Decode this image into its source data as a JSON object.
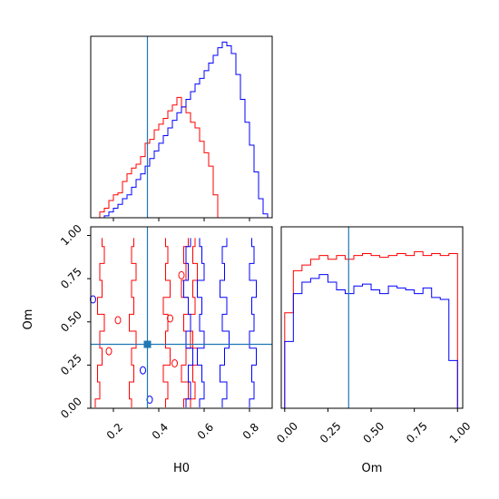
{
  "chart_data": {
    "type": "corner",
    "parameters": [
      "H0",
      "Om"
    ],
    "truth": {
      "H0": 0.35,
      "Om": 0.37
    },
    "colors": {
      "red": "#ff0000",
      "blue": "#0000ff",
      "truth": "#1f77b4"
    },
    "grid": false,
    "panels": [
      {
        "kind": "histogram",
        "param": "H0",
        "xlim": [
          0.1,
          0.9
        ],
        "edges": [
          0.14,
          0.16,
          0.18,
          0.2,
          0.22,
          0.24,
          0.26,
          0.28,
          0.3,
          0.32,
          0.34,
          0.36,
          0.38,
          0.4,
          0.42,
          0.44,
          0.46,
          0.48,
          0.5,
          0.52,
          0.54,
          0.56,
          0.58,
          0.6,
          0.62,
          0.64,
          0.66,
          0.68,
          0.7,
          0.72,
          0.74,
          0.76,
          0.78,
          0.8,
          0.82,
          0.84,
          0.86,
          0.88
        ],
        "series": [
          {
            "color": "red",
            "counts": [
              0.03,
              0.05,
              0.09,
              0.12,
              0.13,
              0.19,
              0.23,
              0.26,
              0.28,
              0.32,
              0.39,
              0.41,
              0.46,
              0.49,
              0.52,
              0.56,
              0.59,
              0.63,
              0.58,
              0.55,
              0.5,
              0.47,
              0.4,
              0.34,
              0.27,
              0.12,
              0.0,
              0.0,
              0.0,
              0.0,
              0.0,
              0.0,
              0.0,
              0.0,
              0.0,
              0.0,
              0.0
            ]
          },
          {
            "color": "blue",
            "counts": [
              0.0,
              0.01,
              0.03,
              0.05,
              0.07,
              0.1,
              0.12,
              0.16,
              0.2,
              0.23,
              0.27,
              0.31,
              0.35,
              0.39,
              0.43,
              0.47,
              0.51,
              0.55,
              0.58,
              0.62,
              0.66,
              0.7,
              0.73,
              0.77,
              0.81,
              0.85,
              0.89,
              0.92,
              0.9,
              0.86,
              0.75,
              0.62,
              0.5,
              0.38,
              0.24,
              0.1,
              0.02
            ]
          }
        ]
      },
      {
        "kind": "contour",
        "xparam": "H0",
        "yparam": "Om",
        "xlim": [
          0.1,
          0.9
        ],
        "ylim": [
          0.0,
          1.05
        ],
        "xticks": [
          "0.2",
          "0.4",
          "0.6",
          "0.8"
        ],
        "yticks": [
          "0.00",
          "0.25",
          "0.50",
          "0.75",
          "1.00"
        ],
        "xticks_values": [
          0.2,
          0.4,
          0.6,
          0.8
        ],
        "yticks_values": [
          0.0,
          0.25,
          0.5,
          0.75,
          1.0
        ],
        "xlabel": "H0",
        "ylabel": "Om",
        "contours": [
          {
            "color": "red",
            "levels": [
              {
                "x_at_y": [
                  0.12,
                  0.14,
                  0.13,
                  0.15,
                  0.14,
                  0.16,
                  0.13,
                  0.15,
                  0.14,
                  0.16,
                  0.15
                ]
              },
              {
                "x_at_y": [
                  0.28,
                  0.27,
                  0.29,
                  0.28,
                  0.3,
                  0.27,
                  0.29,
                  0.28,
                  0.3,
                  0.28,
                  0.29
                ]
              },
              {
                "x_at_y": [
                  0.43,
                  0.44,
                  0.42,
                  0.45,
                  0.43,
                  0.44,
                  0.42,
                  0.45,
                  0.43,
                  0.44,
                  0.43
                ]
              },
              {
                "x_at_y": [
                  0.51,
                  0.53,
                  0.5,
                  0.52,
                  0.54,
                  0.51,
                  0.53,
                  0.5,
                  0.52,
                  0.51,
                  0.53
                ]
              },
              {
                "x_at_y": [
                  0.54,
                  0.56,
                  0.55,
                  0.57,
                  0.55,
                  0.54,
                  0.56,
                  0.55,
                  0.57,
                  0.55,
                  0.56
                ]
              }
            ]
          },
          {
            "color": "blue",
            "levels": [
              {
                "x_at_y": [
                  0.52,
                  0.54,
                  0.53,
                  0.55,
                  0.52,
                  0.54,
                  0.53,
                  0.51,
                  0.53,
                  0.52,
                  0.54
                ]
              },
              {
                "x_at_y": [
                  0.58,
                  0.6,
                  0.59,
                  0.57,
                  0.6,
                  0.58,
                  0.59,
                  0.57,
                  0.6,
                  0.59,
                  0.58
                ]
              },
              {
                "x_at_y": [
                  0.68,
                  0.7,
                  0.67,
                  0.69,
                  0.71,
                  0.68,
                  0.7,
                  0.67,
                  0.69,
                  0.68,
                  0.7
                ]
              },
              {
                "x_at_y": [
                  0.8,
                  0.82,
                  0.81,
                  0.83,
                  0.8,
                  0.82,
                  0.81,
                  0.83,
                  0.8,
                  0.82,
                  0.81
                ]
              }
            ]
          }
        ]
      },
      {
        "kind": "histogram",
        "param": "Om",
        "xlim": [
          -0.02,
          1.03
        ],
        "xticks": [
          "0.00",
          "0.25",
          "0.50",
          "0.75",
          "1.00"
        ],
        "xticks_values": [
          0.0,
          0.25,
          0.5,
          0.75,
          1.0
        ],
        "xlabel": "Om",
        "edges": [
          0.0,
          0.05,
          0.1,
          0.15,
          0.2,
          0.25,
          0.3,
          0.35,
          0.4,
          0.45,
          0.5,
          0.55,
          0.6,
          0.65,
          0.7,
          0.75,
          0.8,
          0.85,
          0.9,
          0.95,
          1.0
        ],
        "series": [
          {
            "color": "red",
            "counts": [
              0.5,
              0.72,
              0.75,
              0.78,
              0.8,
              0.78,
              0.8,
              0.78,
              0.8,
              0.81,
              0.8,
              0.79,
              0.8,
              0.81,
              0.8,
              0.82,
              0.8,
              0.81,
              0.8,
              0.81
            ]
          },
          {
            "color": "blue",
            "counts": [
              0.35,
              0.6,
              0.66,
              0.68,
              0.7,
              0.66,
              0.62,
              0.6,
              0.64,
              0.65,
              0.62,
              0.6,
              0.64,
              0.63,
              0.62,
              0.6,
              0.63,
              0.58,
              0.57,
              0.25
            ]
          }
        ]
      }
    ]
  }
}
